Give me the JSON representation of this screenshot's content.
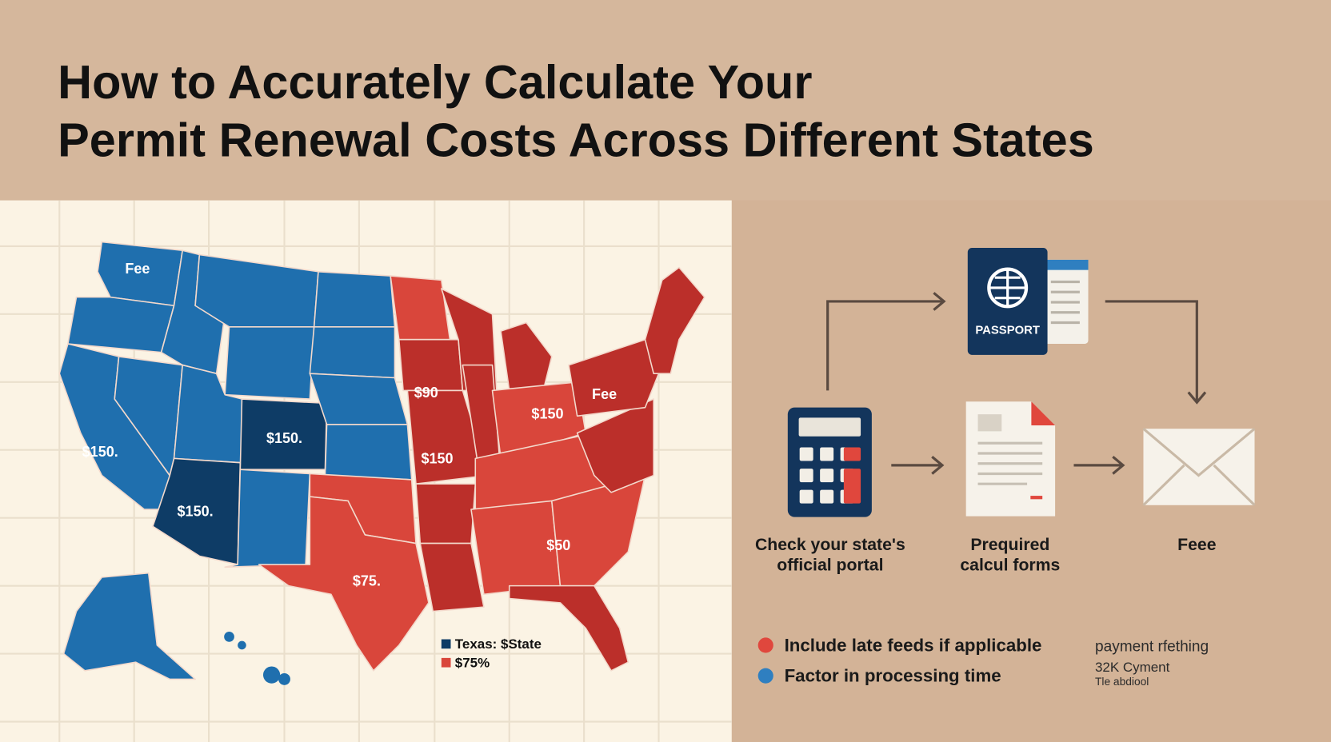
{
  "header": {
    "title_lines": [
      "How to Accurately Calculate Your",
      "Permit Renewal Costs Across Different States"
    ]
  },
  "map": {
    "labels": [
      "Fee",
      "$150.",
      "$150.",
      "$150.",
      "$75.",
      "$90",
      "$150",
      "$150",
      "$50",
      "Fee"
    ],
    "legend": [
      "Texas: $State",
      "$75%"
    ]
  },
  "flow": {
    "passport": "PASSPORT",
    "steps": [
      {
        "lines": [
          "Check your state's",
          "official portal"
        ]
      },
      {
        "lines": [
          "Prequired",
          "calcul forms"
        ]
      },
      {
        "lines": [
          "Feee"
        ]
      }
    ]
  },
  "tips": [
    "Include late feeds if applicable",
    "Factor in processing time"
  ],
  "notes": [
    "payment rfething",
    "32K Cyment",
    "Tle abdiool"
  ]
}
